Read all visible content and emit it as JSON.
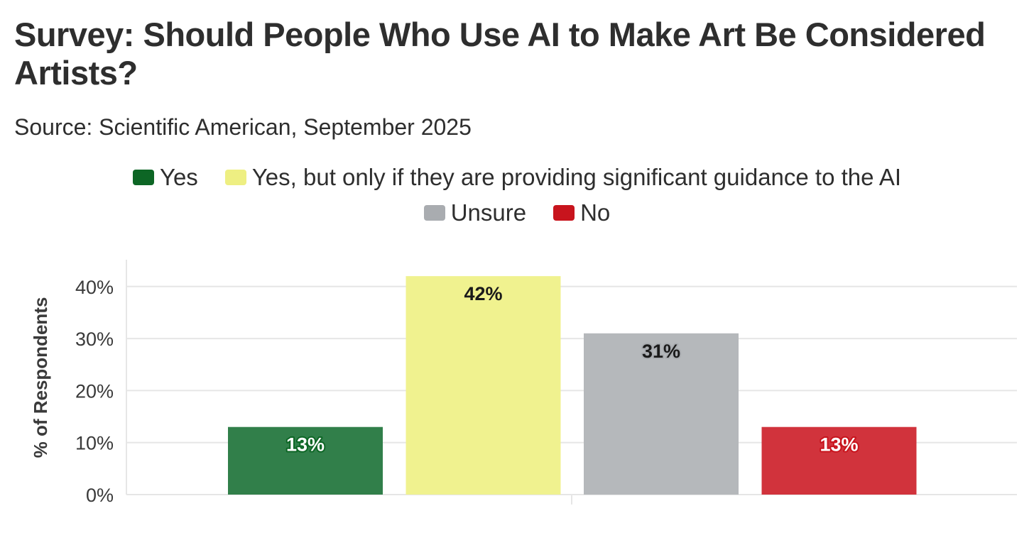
{
  "chart_data": {
    "type": "bar",
    "title": "Survey: Should People Who Use AI to Make Art Be Considered Artists?",
    "subtitle": "Source: Scientific American, September 2025",
    "ylabel": "% of Respondents",
    "xlabel": "",
    "ylim": [
      0,
      45
    ],
    "yticks": [
      0,
      10,
      20,
      30,
      40
    ],
    "ytick_labels": [
      "0%",
      "10%",
      "20%",
      "30%",
      "40%"
    ],
    "grid": true,
    "legend_position": "top-center",
    "categories": [
      "Yes",
      "Yes, but only if they are providing significant guidance to the AI",
      "Unsure",
      "No"
    ],
    "values": [
      13,
      42,
      31,
      13
    ],
    "data_labels": [
      "13%",
      "42%",
      "31%",
      "13%"
    ],
    "colors": [
      "#317f4a",
      "#f0f28f",
      "#b5b8bb",
      "#d1333c"
    ],
    "legend_colors": [
      "#0d6625",
      "#eeef82",
      "#a9acb0",
      "#c8141d"
    ],
    "label_colors": [
      "#ffffff",
      "#1a1a1a",
      "#1a1a1a",
      "#ffffff"
    ],
    "label_outline_colors": [
      "#0d6625",
      "#f0f28f",
      "#a9acb0",
      "#c8141d"
    ]
  }
}
